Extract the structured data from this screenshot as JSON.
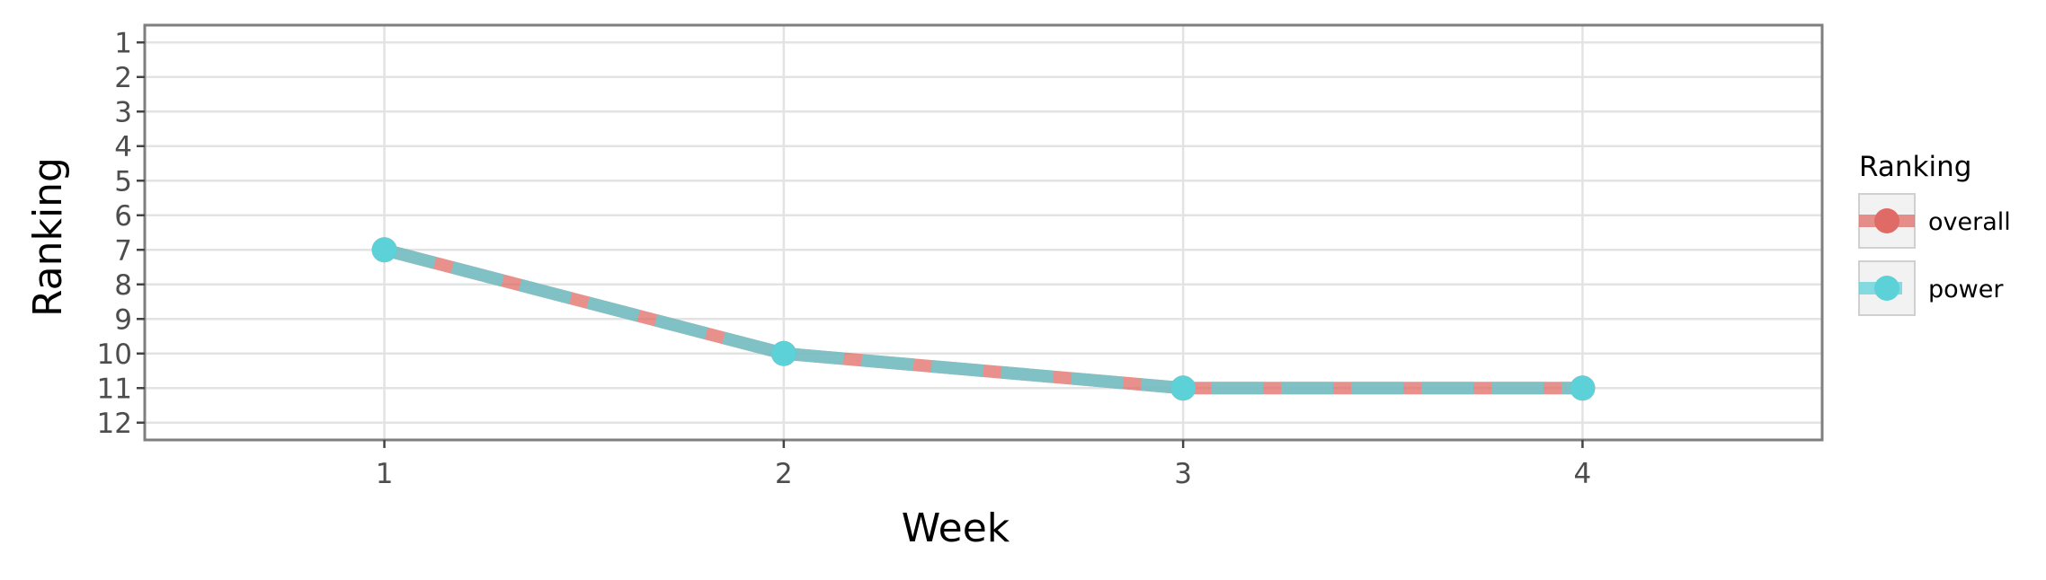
{
  "chart_data": {
    "type": "line",
    "title": "",
    "xlabel": "Week",
    "ylabel": "Ranking",
    "x": [
      1,
      2,
      3,
      4
    ],
    "x_ticks": [
      "1",
      "2",
      "3",
      "4"
    ],
    "y_ticks": [
      "1",
      "2",
      "3",
      "4",
      "5",
      "6",
      "7",
      "8",
      "9",
      "10",
      "11",
      "12"
    ],
    "xlim": [
      0.4,
      4.6
    ],
    "ylim": [
      12.5,
      0.5
    ],
    "y_reversed": true,
    "grid": true,
    "legend": {
      "title": "Ranking",
      "position": "right"
    },
    "series": [
      {
        "name": "overall",
        "values": [
          7,
          10,
          11,
          11
        ],
        "color": "#E06B66",
        "line_style": "solid"
      },
      {
        "name": "power",
        "values": [
          7,
          10,
          11,
          11
        ],
        "color": "#5DD1D8",
        "line_style": "dashed"
      }
    ]
  }
}
